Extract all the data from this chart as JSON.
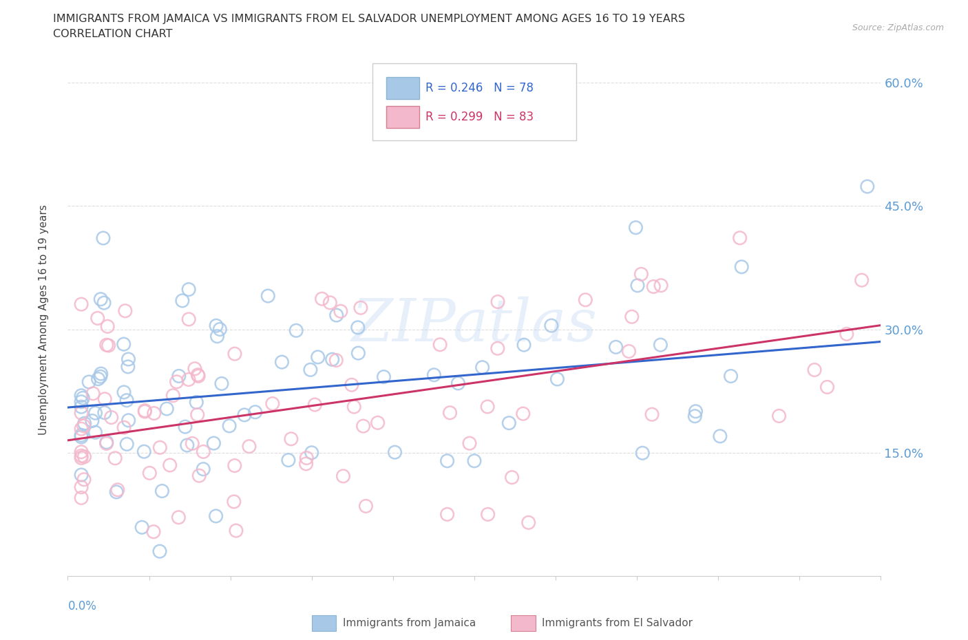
{
  "title_line1": "IMMIGRANTS FROM JAMAICA VS IMMIGRANTS FROM EL SALVADOR UNEMPLOYMENT AMONG AGES 16 TO 19 YEARS",
  "title_line2": "CORRELATION CHART",
  "source_text": "Source: ZipAtlas.com",
  "xlabel_start": "0.0%",
  "xlabel_end": "30.0%",
  "ylabel": "Unemployment Among Ages 16 to 19 years",
  "ytick_labels": [
    "15.0%",
    "30.0%",
    "45.0%",
    "60.0%"
  ],
  "ytick_values": [
    0.15,
    0.3,
    0.45,
    0.6
  ],
  "xrange": [
    0.0,
    0.3
  ],
  "yrange": [
    0.0,
    0.65
  ],
  "jamaica_color": "#a8c8e8",
  "elsalvador_color": "#f4b8cc",
  "jamaica_line_color": "#3366cc",
  "elsalvador_line_color": "#cc3366",
  "jamaica_R": 0.246,
  "jamaica_N": 78,
  "elsalvador_R": 0.299,
  "elsalvador_N": 83,
  "watermark": "ZIPatlas",
  "tick_label_color": "#5b9bd5",
  "background_color": "#ffffff",
  "grid_color": "#dddddd",
  "title_color": "#333333",
  "ylabel_color": "#444444",
  "legend_rect_color": "#cccccc"
}
